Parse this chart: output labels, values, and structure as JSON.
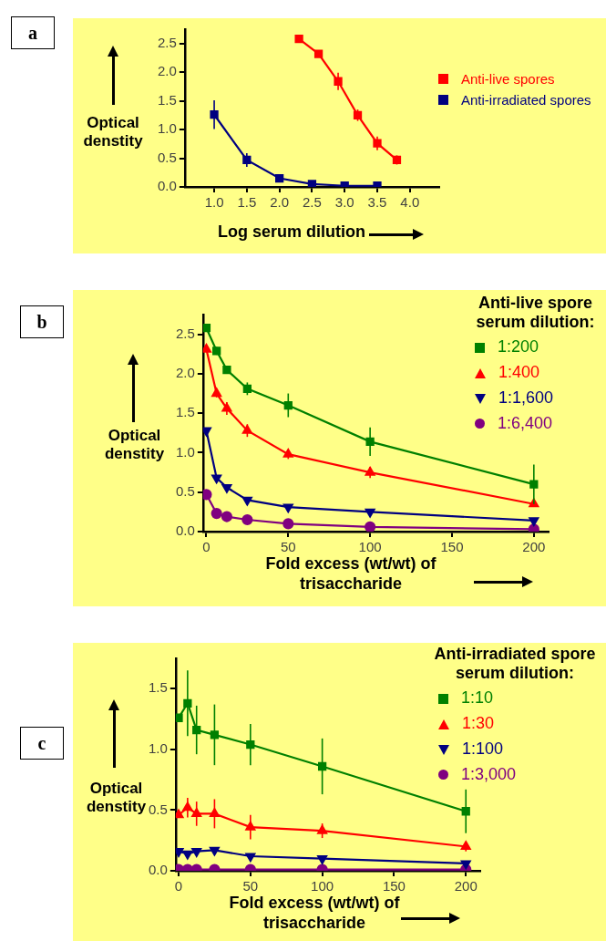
{
  "chart_data": [
    {
      "type": "line",
      "annotations": [
        "a"
      ],
      "xlabel": "Log serum dilution",
      "ylabel": "Optical denstity",
      "legend": "right",
      "xlim": [
        0.55,
        4.45
      ],
      "xticks": [
        {
          "value": 1,
          "label": "1.0"
        },
        {
          "value": 1.5,
          "label": "1.5"
        },
        {
          "value": 2,
          "label": "2.0"
        },
        {
          "value": 2.5,
          "label": "2.5"
        },
        {
          "value": 3,
          "label": "3.0"
        },
        {
          "value": 3.5,
          "label": "3.5"
        },
        {
          "value": 4,
          "label": "4.0"
        }
      ],
      "ylim": [
        0,
        2.75
      ],
      "yticks": [
        {
          "value": 0,
          "label": "0.0"
        },
        {
          "value": 0.5,
          "label": "0.5"
        },
        {
          "value": 1,
          "label": "1.0"
        },
        {
          "value": 1.5,
          "label": "1.5"
        },
        {
          "value": 2,
          "label": "2.0"
        },
        {
          "value": 2.5,
          "label": "2.5"
        }
      ],
      "series": [
        {
          "name": "Anti-live spores",
          "color": "#ff0000",
          "marker": "square",
          "x": [
            2.3,
            2.6,
            2.9,
            3.2,
            3.5,
            3.8
          ],
          "values": [
            2.58,
            2.32,
            1.84,
            1.25,
            0.76,
            0.47
          ],
          "errors": [
            0.03,
            0.05,
            0.15,
            0.1,
            0.12,
            0.08
          ]
        },
        {
          "name": "Anti-irradiated spores",
          "color": "#000080",
          "marker": "square",
          "x": [
            1,
            1.5,
            2,
            2.5,
            3,
            3.5
          ],
          "values": [
            1.26,
            0.47,
            0.15,
            0.05,
            0.02,
            0.02
          ],
          "errors": [
            0.25,
            0.12,
            0.03,
            null,
            null,
            null
          ]
        }
      ]
    },
    {
      "type": "line",
      "annotations": [
        "b"
      ],
      "xlabel": "Fold excess (wt/wt) of trisaccharide",
      "ylabel": "Optical denstity",
      "legend_title": "Anti-live spore serum dilution:",
      "legend": "top right",
      "x": [
        0,
        6.25,
        12.5,
        25,
        50,
        100,
        200
      ],
      "xlim": [
        -2,
        209
      ],
      "xticks": [
        0,
        50,
        100,
        150,
        200
      ],
      "ylim": [
        0,
        2.75
      ],
      "yticks": [
        {
          "value": 0,
          "label": "0.0"
        },
        {
          "value": 0.5,
          "label": "0.5"
        },
        {
          "value": 1,
          "label": "1.0"
        },
        {
          "value": 1.5,
          "label": "1.5"
        },
        {
          "value": 2,
          "label": "2.0"
        },
        {
          "value": 2.5,
          "label": "2.5"
        }
      ],
      "series": [
        {
          "name": "1:200",
          "color": "#008000",
          "marker": "square",
          "values": [
            2.58,
            2.29,
            2.05,
            1.81,
            1.6,
            1.14,
            0.6
          ],
          "errors": [
            null,
            0.05,
            null,
            0.08,
            0.15,
            0.18,
            0.25
          ]
        },
        {
          "name": "1:400",
          "color": "#ff0000",
          "marker": "triangle",
          "values": [
            2.31,
            1.75,
            1.56,
            1.28,
            0.98,
            0.75,
            0.35
          ],
          "errors": [
            null,
            0.05,
            0.08,
            0.08,
            0.06,
            0.07,
            null
          ]
        },
        {
          "name": "1:1,600",
          "color": "#000080",
          "marker": "triangle-down",
          "values": [
            1.28,
            0.68,
            0.56,
            0.4,
            0.31,
            0.25,
            0.14
          ],
          "errors": [
            null,
            null,
            null,
            null,
            null,
            null,
            null
          ]
        },
        {
          "name": "1:6,400",
          "color": "#800080",
          "marker": "circle",
          "values": [
            0.47,
            0.23,
            0.19,
            0.15,
            0.1,
            0.06,
            0.03
          ],
          "errors": [
            null,
            null,
            null,
            null,
            null,
            null,
            null
          ]
        }
      ]
    },
    {
      "type": "line",
      "annotations": [
        "c"
      ],
      "xlabel": "Fold excess (wt/wt) of trisaccharide",
      "ylabel": "Optical denstity",
      "legend_title": "Anti-irradiated spore serum dilution:",
      "legend": "top right",
      "x": [
        0,
        6.25,
        12.5,
        25,
        50,
        100,
        200
      ],
      "xlim": [
        -2,
        210
      ],
      "xticks": [
        0,
        50,
        100,
        150,
        200
      ],
      "ylim": [
        0,
        1.75
      ],
      "yticks": [
        {
          "value": 0,
          "label": "0.0"
        },
        {
          "value": 0.5,
          "label": "0.5"
        },
        {
          "value": 1,
          "label": "1.0"
        },
        {
          "value": 1.5,
          "label": "1.5"
        }
      ],
      "series": [
        {
          "name": "1:10",
          "color": "#008000",
          "marker": "square",
          "values": [
            1.26,
            1.38,
            1.16,
            1.12,
            1.04,
            0.86,
            0.49
          ],
          "errors": [
            null,
            0.27,
            0.2,
            0.25,
            0.17,
            0.23,
            0.18
          ]
        },
        {
          "name": "1:30",
          "color": "#ff0000",
          "marker": "triangle",
          "values": [
            0.46,
            0.52,
            0.47,
            0.47,
            0.36,
            0.33,
            0.2
          ],
          "errors": [
            null,
            0.08,
            0.1,
            0.12,
            0.1,
            0.06,
            0.04
          ]
        },
        {
          "name": "1:100",
          "color": "#000080",
          "marker": "triangle-down",
          "values": [
            0.16,
            0.14,
            0.16,
            0.17,
            0.12,
            0.1,
            0.06
          ],
          "errors": [
            null,
            null,
            null,
            null,
            null,
            null,
            null
          ]
        },
        {
          "name": "1:3,000",
          "color": "#800080",
          "marker": "circle",
          "values": [
            0.01,
            0.01,
            0.01,
            0.01,
            0.01,
            0.01,
            0.01
          ],
          "errors": [
            null,
            null,
            null,
            null,
            null,
            null,
            null
          ]
        }
      ]
    }
  ]
}
